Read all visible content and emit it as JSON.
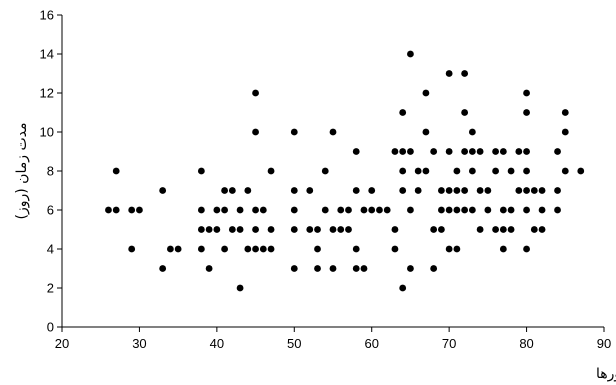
{
  "chart_data": {
    "type": "scatter",
    "title": "",
    "xlabel": "درصد پلی مورفونوکلئورها",
    "ylabel": "مدت زمان (روز)",
    "xlim": [
      20,
      90
    ],
    "ylim": [
      0,
      16
    ],
    "x_ticks": [
      20,
      30,
      40,
      50,
      60,
      70,
      80,
      90
    ],
    "y_ticks": [
      0,
      2,
      4,
      6,
      8,
      10,
      12,
      14,
      16
    ],
    "grid": false,
    "legend": "none",
    "marker_color": "#000000",
    "points": [
      [
        26,
        6
      ],
      [
        27,
        8
      ],
      [
        27,
        6
      ],
      [
        29,
        4
      ],
      [
        29,
        6
      ],
      [
        30,
        6
      ],
      [
        33,
        3
      ],
      [
        33,
        7
      ],
      [
        34,
        4
      ],
      [
        35,
        4
      ],
      [
        38,
        8
      ],
      [
        38,
        6
      ],
      [
        38,
        5
      ],
      [
        38,
        4
      ],
      [
        39,
        3
      ],
      [
        39,
        5
      ],
      [
        40,
        6
      ],
      [
        40,
        5
      ],
      [
        41,
        7
      ],
      [
        41,
        6
      ],
      [
        41,
        4
      ],
      [
        42,
        7
      ],
      [
        42,
        5
      ],
      [
        43,
        2
      ],
      [
        43,
        6
      ],
      [
        43,
        5
      ],
      [
        44,
        7
      ],
      [
        44,
        4
      ],
      [
        45,
        12
      ],
      [
        45,
        10
      ],
      [
        45,
        6
      ],
      [
        45,
        5
      ],
      [
        45,
        4
      ],
      [
        46,
        4
      ],
      [
        46,
        6
      ],
      [
        47,
        8
      ],
      [
        47,
        5
      ],
      [
        47,
        4
      ],
      [
        50,
        10
      ],
      [
        50,
        7
      ],
      [
        50,
        6
      ],
      [
        50,
        5
      ],
      [
        50,
        3
      ],
      [
        52,
        7
      ],
      [
        52,
        5
      ],
      [
        53,
        5
      ],
      [
        53,
        4
      ],
      [
        53,
        3
      ],
      [
        54,
        8
      ],
      [
        54,
        6
      ],
      [
        55,
        10
      ],
      [
        55,
        5
      ],
      [
        55,
        3
      ],
      [
        56,
        6
      ],
      [
        56,
        5
      ],
      [
        57,
        6
      ],
      [
        57,
        5
      ],
      [
        58,
        9
      ],
      [
        58,
        7
      ],
      [
        58,
        4
      ],
      [
        58,
        3
      ],
      [
        59,
        6
      ],
      [
        59,
        3
      ],
      [
        60,
        7
      ],
      [
        60,
        6
      ],
      [
        61,
        6
      ],
      [
        62,
        6
      ],
      [
        63,
        9
      ],
      [
        63,
        5
      ],
      [
        63,
        4
      ],
      [
        64,
        11
      ],
      [
        64,
        9
      ],
      [
        64,
        8
      ],
      [
        64,
        7
      ],
      [
        64,
        2
      ],
      [
        65,
        14
      ],
      [
        65,
        9
      ],
      [
        65,
        6
      ],
      [
        65,
        3
      ],
      [
        66,
        8
      ],
      [
        66,
        7
      ],
      [
        67,
        12
      ],
      [
        67,
        10
      ],
      [
        67,
        8
      ],
      [
        68,
        9
      ],
      [
        68,
        5
      ],
      [
        68,
        3
      ],
      [
        69,
        7
      ],
      [
        69,
        6
      ],
      [
        69,
        5
      ],
      [
        70,
        13
      ],
      [
        70,
        9
      ],
      [
        70,
        7
      ],
      [
        70,
        6
      ],
      [
        70,
        4
      ],
      [
        71,
        8
      ],
      [
        71,
        7
      ],
      [
        71,
        6
      ],
      [
        71,
        4
      ],
      [
        72,
        13
      ],
      [
        72,
        11
      ],
      [
        72,
        9
      ],
      [
        72,
        7
      ],
      [
        72,
        6
      ],
      [
        73,
        10
      ],
      [
        73,
        9
      ],
      [
        73,
        8
      ],
      [
        73,
        6
      ],
      [
        74,
        9
      ],
      [
        74,
        7
      ],
      [
        74,
        5
      ],
      [
        75,
        6
      ],
      [
        75,
        7
      ],
      [
        76,
        9
      ],
      [
        76,
        8
      ],
      [
        76,
        5
      ],
      [
        77,
        9
      ],
      [
        77,
        6
      ],
      [
        77,
        5
      ],
      [
        77,
        4
      ],
      [
        78,
        8
      ],
      [
        78,
        6
      ],
      [
        78,
        5
      ],
      [
        79,
        7
      ],
      [
        79,
        9
      ],
      [
        80,
        12
      ],
      [
        80,
        11
      ],
      [
        80,
        9
      ],
      [
        80,
        8
      ],
      [
        80,
        7
      ],
      [
        80,
        6
      ],
      [
        80,
        4
      ],
      [
        81,
        7
      ],
      [
        81,
        5
      ],
      [
        82,
        7
      ],
      [
        82,
        6
      ],
      [
        82,
        5
      ],
      [
        84,
        9
      ],
      [
        84,
        7
      ],
      [
        84,
        6
      ],
      [
        85,
        11
      ],
      [
        85,
        10
      ],
      [
        85,
        8
      ],
      [
        87,
        8
      ]
    ]
  }
}
